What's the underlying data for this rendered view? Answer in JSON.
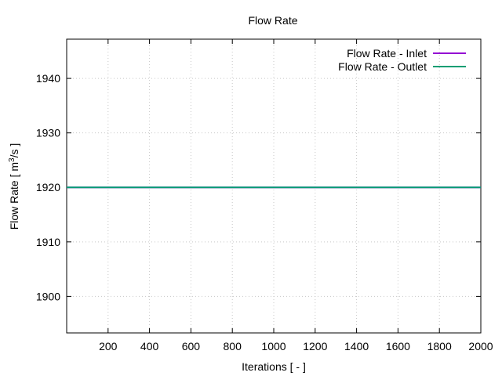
{
  "chart_data": {
    "type": "line",
    "title": "Flow Rate",
    "xlabel": "Iterations [ - ]",
    "ylabel_main": "Flow Rate [ m",
    "ylabel_sup": "3",
    "ylabel_tail": "/s ]",
    "xlim": [
      0,
      2000
    ],
    "ylim": [
      1893.3,
      1947.2
    ],
    "x_ticks": [
      200,
      400,
      600,
      800,
      1000,
      1200,
      1400,
      1600,
      1800,
      2000
    ],
    "y_ticks": [
      1900,
      1910,
      1920,
      1930,
      1940
    ],
    "grid": true,
    "legend_position": "top-right",
    "series": [
      {
        "name": "Flow Rate - Inlet",
        "color": "#9400d3",
        "x": [
          0,
          2000
        ],
        "y": [
          1920,
          1920
        ]
      },
      {
        "name": "Flow Rate - Outlet",
        "color": "#009e73",
        "x": [
          0,
          2000
        ],
        "y": [
          1920,
          1920
        ]
      }
    ]
  }
}
